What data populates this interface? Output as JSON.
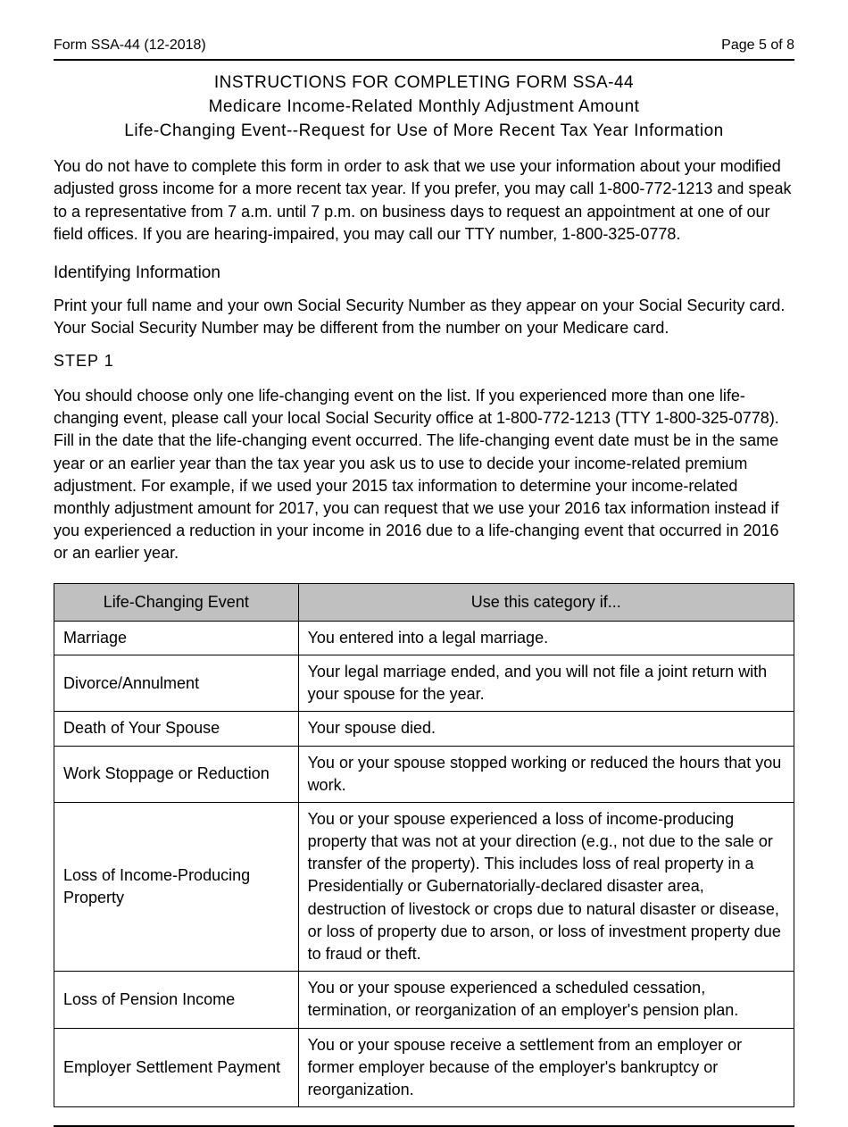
{
  "header": {
    "form_id": "Form SSA-44 (12-2018)",
    "page_label": "Page 5 of 8"
  },
  "title": {
    "line1": "INSTRUCTIONS FOR COMPLETING FORM SSA-44",
    "line2": "Medicare Income-Related Monthly Adjustment Amount",
    "line3": "Life-Changing Event--Request for Use of More Recent Tax Year Information"
  },
  "intro": "You do not have to complete this form in order to ask that we use your information about your modified adjusted gross income for a more recent tax year. If you prefer, you may call 1-800-772-1213 and speak to a representative from 7 a.m. until 7 p.m. on business days to request an appointment at one of our field offices. If you are hearing-impaired, you may call our TTY number, 1-800-325-0778.",
  "identifying": {
    "heading": "Identifying Information",
    "body": "Print your full name and your own Social Security Number as they appear on your Social Security card. Your Social Security Number may be different from the number on your Medicare card."
  },
  "step1": {
    "label": "STEP 1",
    "body": "You should choose only one life-changing event on the list. If you experienced more than one life-changing event, please call your local Social Security office at 1-800-772-1213 (TTY 1-800-325-0778). Fill in the date that the life-changing event occurred. The life-changing event date must be in the same year or an earlier year than the tax year you ask us to use to decide your income-related premium adjustment. For example, if we used your 2015 tax information to determine your income-related monthly adjustment amount for 2017, you can request that we use your 2016 tax information instead if you experienced a reduction in your income in 2016 due to a life-changing event that occurred in 2016 or an earlier year."
  },
  "table": {
    "columns": [
      "Life-Changing Event",
      "Use this category if..."
    ],
    "rows": [
      [
        "Marriage",
        "You entered into a legal marriage."
      ],
      [
        "Divorce/Annulment",
        "Your legal marriage ended, and you will not file a joint return with your spouse for the year."
      ],
      [
        "Death of Your Spouse",
        "Your spouse died."
      ],
      [
        "Work Stoppage or Reduction",
        "You or your spouse stopped working or reduced the hours that you work."
      ],
      [
        "Loss of Income-Producing Property",
        "You or your spouse experienced a loss of income-producing property that was not at your direction (e.g., not due to the sale or transfer of the  property). This includes loss of real property in a Presidentially or Gubernatorially-declared disaster area, destruction of livestock or crops due to natural disaster or disease, or loss of property due to arson, or loss of investment property due to fraud or theft."
      ],
      [
        "Loss of Pension Income",
        "You or your spouse experienced a scheduled cessation, termination, or reorganization of an employer's pension plan."
      ],
      [
        "Employer Settlement Payment",
        "You or your spouse receive a settlement from an employer or former employer because of the employer's bankruptcy or reorganization."
      ]
    ],
    "header_bg": "#c0c0c0",
    "border_color": "#000000"
  }
}
